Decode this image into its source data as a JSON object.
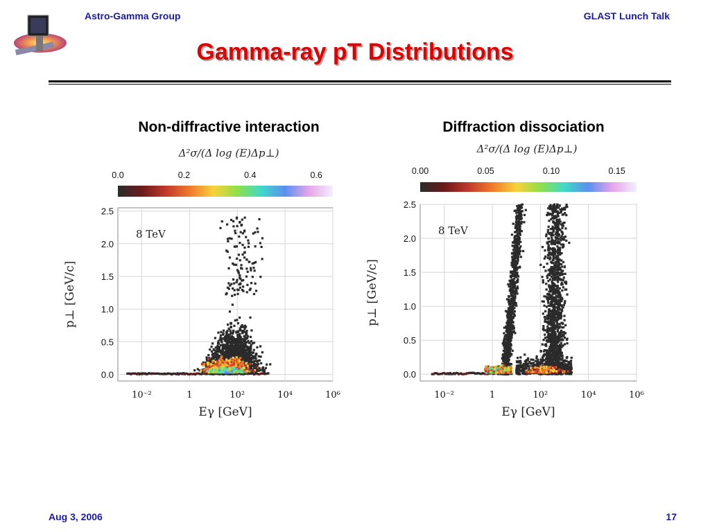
{
  "header": {
    "left": "Astro-Gamma Group",
    "right": "GLAST Lunch Talk"
  },
  "slide": {
    "title": "Gamma-ray pT Distributions"
  },
  "footer": {
    "date": "Aug 3, 2006",
    "page": "17"
  },
  "chart_data": [
    {
      "type": "heatmap",
      "title": "Non-diffractive interaction",
      "colorbar_label": "Δ²σ/(Δ log (E)Δp⊥)",
      "colorbar_ticks": [
        "0.0",
        "0.2",
        "0.4",
        "0.6"
      ],
      "colorbar_range": [
        0,
        0.65
      ],
      "annotation": "8 TeV",
      "xlabel": "Eγ [GeV]",
      "ylabel": "p⊥ [GeV/c]",
      "x_scale": "log",
      "xlim_log10": [
        -3,
        6
      ],
      "ylim": [
        -0.1,
        2.55
      ],
      "x_ticks_log10": [
        -2,
        0,
        2,
        4,
        6
      ],
      "x_tick_labels": [
        "10⁻²",
        "1",
        "10²",
        "10⁴",
        "10⁶"
      ],
      "y_ticks": [
        0.0,
        0.5,
        1.0,
        1.5,
        2.0,
        2.5
      ],
      "y_tick_labels": [
        "0.0",
        "0.5",
        "1.0",
        "1.5",
        "2.0",
        "2.5"
      ],
      "colors": [
        "#2b2b2b",
        "#6b1a1a",
        "#c0392b",
        "#f07a2a",
        "#f6d23a",
        "#8fe04a",
        "#3fd9c9",
        "#5d8ff0",
        "#e7a5e8",
        "#f0f0ff"
      ]
    },
    {
      "type": "heatmap",
      "title": "Diffraction dissociation",
      "colorbar_label": "Δ²σ/(Δ log (E)Δp⊥)",
      "colorbar_ticks": [
        "0.00",
        "0.05",
        "0.10",
        "0.15"
      ],
      "colorbar_range": [
        0,
        0.165
      ],
      "annotation": "8 TeV",
      "xlabel": "Eγ [GeV]",
      "ylabel": "p⊥ [GeV/c]",
      "x_scale": "log",
      "xlim_log10": [
        -3,
        6
      ],
      "ylim": [
        -0.1,
        2.5
      ],
      "x_ticks_log10": [
        -2,
        0,
        2,
        4,
        6
      ],
      "x_tick_labels": [
        "10⁻²",
        "1",
        "10²",
        "10⁴",
        "10⁶"
      ],
      "y_ticks": [
        0.0,
        0.5,
        1.0,
        1.5,
        2.0,
        2.5
      ],
      "y_tick_labels": [
        "0.0",
        "0.5",
        "1.0",
        "1.5",
        "2.0",
        "2.5"
      ],
      "colors": [
        "#2b2b2b",
        "#6b1a1a",
        "#c0392b",
        "#f07a2a",
        "#f6d23a",
        "#8fe04a",
        "#3fd9c9",
        "#5d8ff0",
        "#e7a5e8",
        "#f0f0ff"
      ]
    }
  ]
}
